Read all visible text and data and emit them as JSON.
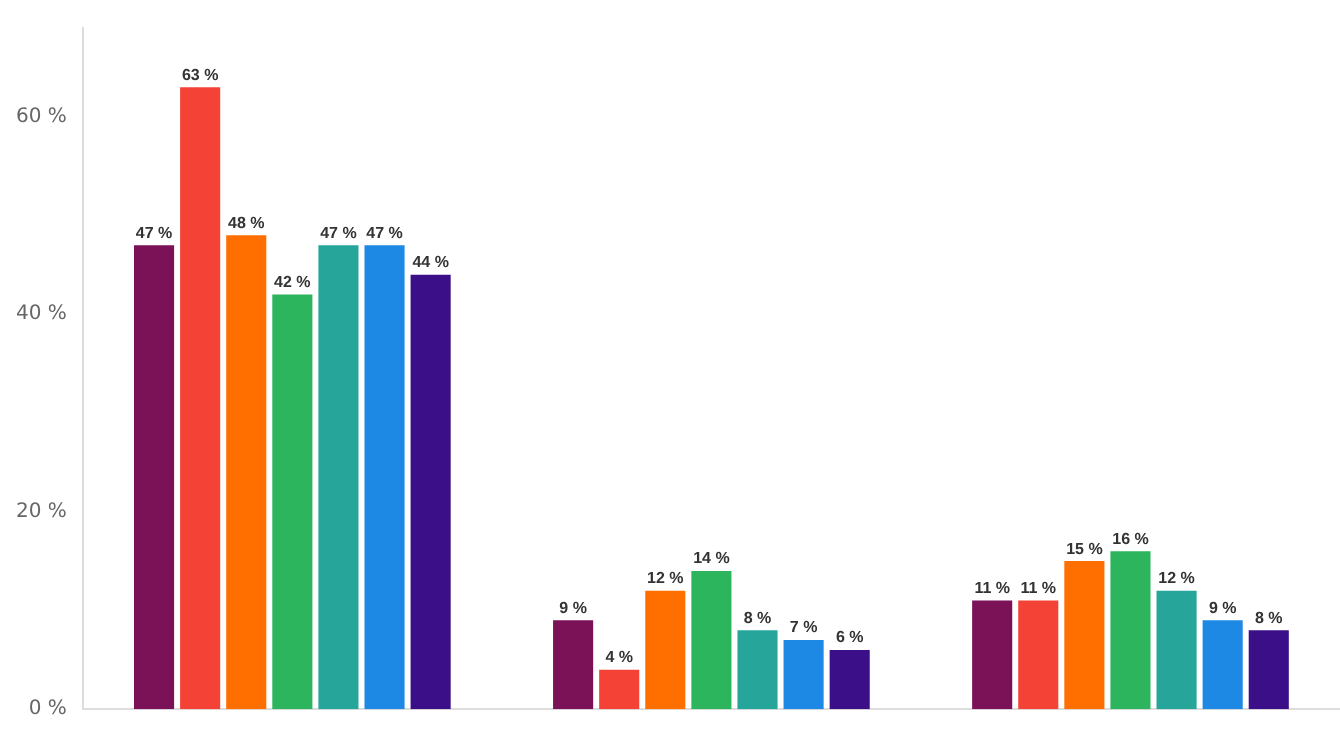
{
  "chart_data": {
    "type": "bar",
    "categories": [
      null,
      null,
      null
    ],
    "series": [
      {
        "color": "#7b1156",
        "values": [
          47,
          9,
          11
        ],
        "value_labels": [
          "47 %",
          "9 %",
          "11 %"
        ]
      },
      {
        "color": "#f44336",
        "values": [
          63,
          4,
          11
        ],
        "value_labels": [
          "63 %",
          "4 %",
          "11 %"
        ]
      },
      {
        "color": "#ff6f00",
        "values": [
          48,
          12,
          15
        ],
        "value_labels": [
          "48 %",
          "12 %",
          "15 %"
        ]
      },
      {
        "color": "#2db55d",
        "values": [
          42,
          14,
          16
        ],
        "value_labels": [
          "42 %",
          "14 %",
          "16 %"
        ]
      },
      {
        "color": "#26a69a",
        "values": [
          47,
          8,
          12
        ],
        "value_labels": [
          "47 %",
          "8 %",
          "12 %"
        ]
      },
      {
        "color": "#1e88e5",
        "values": [
          47,
          7,
          9
        ],
        "value_labels": [
          "47 %",
          "7 %",
          "9 %"
        ]
      },
      {
        "color": "#3b0f88",
        "values": [
          44,
          6,
          8
        ],
        "value_labels": [
          "44 %",
          "6 %",
          "8 %"
        ]
      }
    ],
    "ylim": [
      0,
      69
    ],
    "yticks": [
      {
        "value": 0,
        "label": "0 %"
      },
      {
        "value": 20,
        "label": "20 %"
      },
      {
        "value": 40,
        "label": "40 %"
      },
      {
        "value": 60,
        "label": "60 %"
      }
    ],
    "grid": false,
    "legend": false
  }
}
